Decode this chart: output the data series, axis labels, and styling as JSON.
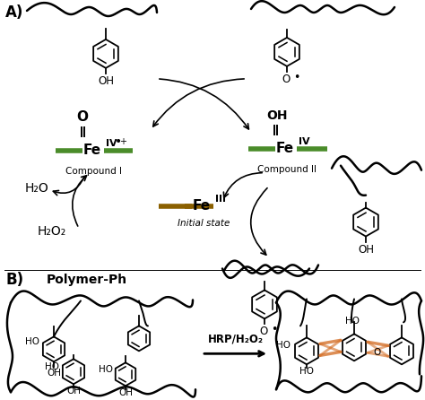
{
  "title_A": "A)",
  "title_B": "B)",
  "compound1_label": "Compound I",
  "compound2_label": "Compound II",
  "fe3_label": "Initial state",
  "fe_color_green": "#4a8c2a",
  "fe_color_brown": "#8B6000",
  "h2o": "H₂O",
  "h2o2": "H₂O₂",
  "polymer_label": "Polymer-Ph",
  "hrp_label": "HRP/H₂O₂",
  "bg_color": "#ffffff",
  "orange_color": "#D2691E"
}
